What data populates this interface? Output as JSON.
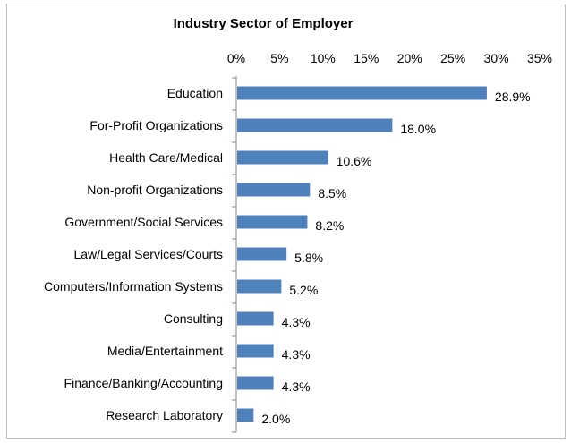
{
  "chart_data": {
    "type": "bar",
    "orientation": "horizontal",
    "title": "Industry Sector of Employer",
    "xlabel": "",
    "ylabel": "",
    "xlim": [
      0,
      35
    ],
    "x_ticks": [
      "0%",
      "5%",
      "10%",
      "15%",
      "20%",
      "25%",
      "30%",
      "35%"
    ],
    "x_tick_values": [
      0,
      5,
      10,
      15,
      20,
      25,
      30,
      35
    ],
    "x_axis_position": "top",
    "grid": false,
    "legend": "none",
    "bar_color": "#4f81bd",
    "categories": [
      "Education",
      "For-Profit Organizations",
      "Health Care/Medical",
      "Non-profit Organizations",
      "Government/Social Services",
      "Law/Legal Services/Courts",
      "Computers/Information Systems",
      "Consulting",
      "Media/Entertainment",
      "Finance/Banking/Accounting",
      "Research Laboratory"
    ],
    "values": [
      28.9,
      18.0,
      10.6,
      8.5,
      8.2,
      5.8,
      5.2,
      4.3,
      4.3,
      4.3,
      2.0
    ],
    "data_labels": [
      "28.9%",
      "18.0%",
      "10.6%",
      "8.5%",
      "8.2%",
      "5.8%",
      "5.2%",
      "4.3%",
      "4.3%",
      "4.3%",
      "2.0%"
    ]
  }
}
